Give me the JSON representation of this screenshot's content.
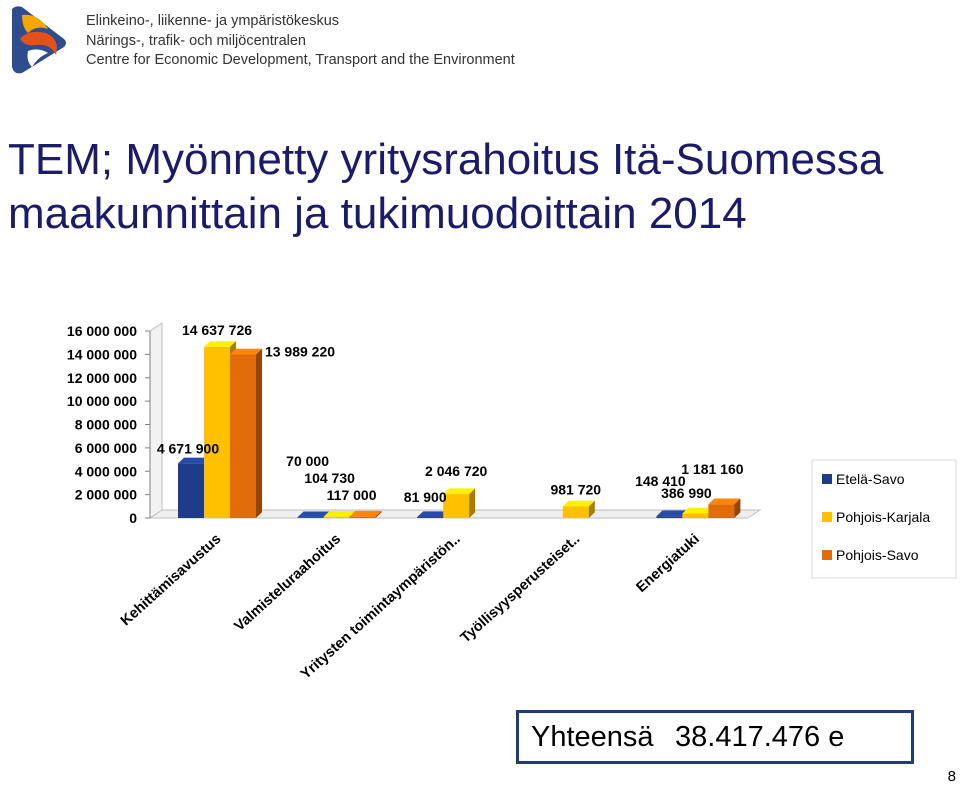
{
  "header": {
    "org_lines": [
      "Elinkeino-, liikenne- ja ympäristökeskus",
      "Närings-, trafik- och miljöcentralen",
      "Centre for Economic Development, Transport and the Environment"
    ],
    "logo_icon": "ely-centre-logo-icon",
    "title_lines": [
      "TEM; Myönnetty yritysrahoitus Itä-Suomessa",
      "maakunnittain ja tukimuodoittain 2014"
    ]
  },
  "chart_data": {
    "type": "bar",
    "categories": [
      "Kehittämisavustus",
      "Valmisteluraahoitus",
      "Yritysten toimintaympäristön..",
      "Työllisyysperusteiset..",
      "Energiatuki"
    ],
    "series": [
      {
        "name": "Etelä-Savo",
        "color": "#1f3c88",
        "values": [
          4671900,
          70000,
          81900,
          0,
          148410
        ]
      },
      {
        "name": "Pohjois-Karjala",
        "color": "#ffc000",
        "values": [
          14637726,
          104730,
          2046720,
          981720,
          386990
        ]
      },
      {
        "name": "Pohjois-Savo",
        "color": "#e26b0a",
        "values": [
          13989220,
          117000,
          0,
          0,
          1181160
        ]
      }
    ],
    "data_labels": [
      {
        "text": "14 637 726",
        "series": 1,
        "category": 0
      },
      {
        "text": "13 989 220",
        "series": 2,
        "category": 0
      },
      {
        "text": "4 671 900",
        "series": 0,
        "category": 0
      },
      {
        "text": "70 000",
        "series": 0,
        "category": 1
      },
      {
        "text": "104 730",
        "series": 1,
        "category": 1
      },
      {
        "text": "117 000",
        "series": 2,
        "category": 1
      },
      {
        "text": "2 046 720",
        "series": 1,
        "category": 2
      },
      {
        "text": "81 900",
        "series": 0,
        "category": 2
      },
      {
        "text": "981 720",
        "series": 1,
        "category": 3
      },
      {
        "text": "148 410",
        "series": 0,
        "category": 4
      },
      {
        "text": "1 181 160",
        "series": 2,
        "category": 4
      },
      {
        "text": "386 990",
        "series": 1,
        "category": 4
      }
    ],
    "y_ticks": [
      "0",
      "2 000 000",
      "4 000 000",
      "6 000 000",
      "8 000 000",
      "10 000 000",
      "12 000 000",
      "14 000 000",
      "16 000 000"
    ],
    "ylim": [
      0,
      16000000
    ],
    "grid": false,
    "legend_position": "right"
  },
  "footer": {
    "total_label": "Yhteensä",
    "total_value": "38.417.476 e",
    "page_number": "8"
  }
}
